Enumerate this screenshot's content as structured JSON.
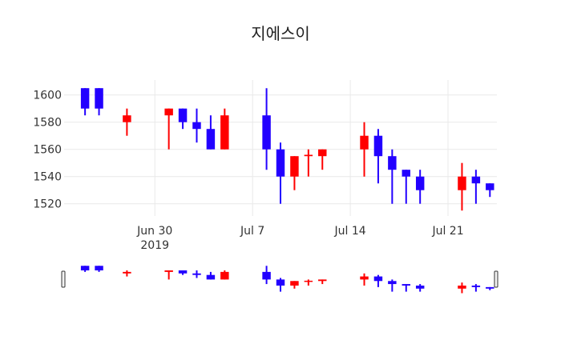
{
  "chart_data": {
    "type": "candlestick",
    "title": "지에스이",
    "xlabel": "",
    "ylabel": "",
    "ylim": [
      1511,
      1611
    ],
    "grid": true,
    "colors": {
      "increasing": "#ff0000",
      "decreasing": "#2200ff"
    },
    "x_ticks": [
      {
        "date": "2019-06-30",
        "label": "Jun 30",
        "sublabel": "2019"
      },
      {
        "date": "2019-07-07",
        "label": "Jul 7",
        "sublabel": ""
      },
      {
        "date": "2019-07-14",
        "label": "Jul 14",
        "sublabel": ""
      },
      {
        "date": "2019-07-21",
        "label": "Jul 21",
        "sublabel": ""
      }
    ],
    "y_ticks": [
      1520,
      1540,
      1560,
      1580,
      1600
    ],
    "x_range": [
      "2019-06-24",
      "2019-07-24"
    ],
    "candles": [
      {
        "date": "2019-06-25",
        "open": 1605,
        "high": 1605,
        "low": 1585,
        "close": 1590
      },
      {
        "date": "2019-06-26",
        "open": 1605,
        "high": 1605,
        "low": 1585,
        "close": 1590
      },
      {
        "date": "2019-06-28",
        "open": 1580,
        "high": 1590,
        "low": 1570,
        "close": 1585
      },
      {
        "date": "2019-07-01",
        "open": 1585,
        "high": 1590,
        "low": 1560,
        "close": 1590
      },
      {
        "date": "2019-07-02",
        "open": 1590,
        "high": 1590,
        "low": 1575,
        "close": 1580
      },
      {
        "date": "2019-07-03",
        "open": 1580,
        "high": 1590,
        "low": 1565,
        "close": 1575
      },
      {
        "date": "2019-07-04",
        "open": 1575,
        "high": 1585,
        "low": 1560,
        "close": 1560
      },
      {
        "date": "2019-07-05",
        "open": 1560,
        "high": 1590,
        "low": 1560,
        "close": 1585
      },
      {
        "date": "2019-07-08",
        "open": 1585,
        "high": 1605,
        "low": 1545,
        "close": 1560
      },
      {
        "date": "2019-07-09",
        "open": 1560,
        "high": 1565,
        "low": 1520,
        "close": 1540
      },
      {
        "date": "2019-07-10",
        "open": 1540,
        "high": 1555,
        "low": 1530,
        "close": 1555
      },
      {
        "date": "2019-07-11",
        "open": 1555,
        "high": 1560,
        "low": 1540,
        "close": 1556
      },
      {
        "date": "2019-07-12",
        "open": 1555,
        "high": 1560,
        "low": 1545,
        "close": 1560
      },
      {
        "date": "2019-07-15",
        "open": 1560,
        "high": 1580,
        "low": 1540,
        "close": 1570
      },
      {
        "date": "2019-07-16",
        "open": 1570,
        "high": 1575,
        "low": 1535,
        "close": 1555
      },
      {
        "date": "2019-07-17",
        "open": 1555,
        "high": 1560,
        "low": 1520,
        "close": 1545
      },
      {
        "date": "2019-07-18",
        "open": 1545,
        "high": 1545,
        "low": 1520,
        "close": 1540
      },
      {
        "date": "2019-07-19",
        "open": 1540,
        "high": 1545,
        "low": 1520,
        "close": 1530
      },
      {
        "date": "2019-07-22",
        "open": 1530,
        "high": 1550,
        "low": 1515,
        "close": 1540
      },
      {
        "date": "2019-07-23",
        "open": 1540,
        "high": 1545,
        "low": 1520,
        "close": 1535
      },
      {
        "date": "2019-07-24",
        "open": 1535,
        "high": 1535,
        "low": 1525,
        "close": 1530
      }
    ],
    "rangeslider": true
  }
}
